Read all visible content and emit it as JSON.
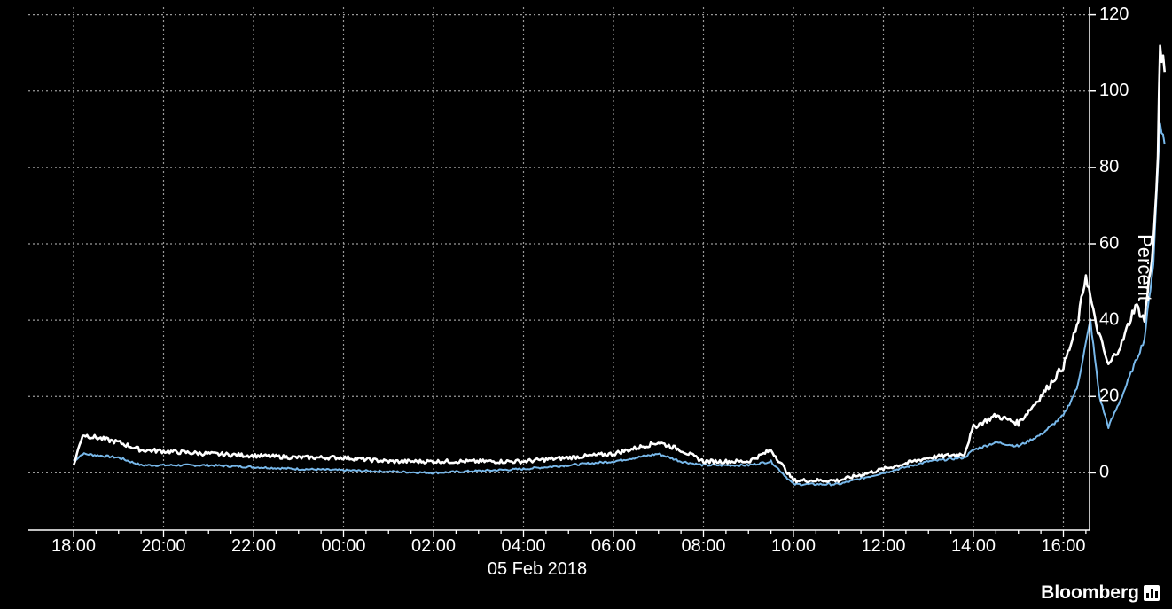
{
  "chart_data": {
    "type": "line",
    "ylabel": "Percent",
    "date_label": "05 Feb 2018",
    "brand": "Bloomberg",
    "grid": true,
    "ylim": [
      -15,
      122
    ],
    "y_ticks": [
      0,
      20,
      40,
      60,
      80,
      100,
      120
    ],
    "x_ticks": [
      "18:00",
      "20:00",
      "22:00",
      "00:00",
      "02:00",
      "04:00",
      "06:00",
      "08:00",
      "10:00",
      "12:00",
      "14:00",
      "16:00"
    ],
    "x_start": "18:00",
    "x_end": "16:15",
    "series": [
      {
        "color": "#ffffff",
        "values": [
          [
            0,
            2
          ],
          [
            0.2,
            10
          ],
          [
            1.0,
            8
          ],
          [
            1.5,
            6
          ],
          [
            3,
            5
          ],
          [
            5,
            4
          ],
          [
            6,
            4
          ],
          [
            7,
            3
          ],
          [
            8,
            3
          ],
          [
            10,
            3
          ],
          [
            12,
            5
          ],
          [
            13,
            8
          ],
          [
            13.5,
            6
          ],
          [
            14,
            3
          ],
          [
            15,
            3
          ],
          [
            15.5,
            6
          ],
          [
            16,
            -2
          ],
          [
            17,
            -2
          ],
          [
            18,
            1
          ],
          [
            19,
            4
          ],
          [
            19.8,
            5
          ],
          [
            20,
            12
          ],
          [
            20.5,
            15
          ],
          [
            21,
            13
          ],
          [
            21.5,
            20
          ],
          [
            22,
            28
          ],
          [
            22.3,
            38
          ],
          [
            22.5,
            52
          ],
          [
            22.7,
            40
          ],
          [
            23,
            28
          ],
          [
            23.3,
            34
          ],
          [
            23.6,
            44
          ],
          [
            23.8,
            40
          ],
          [
            24,
            60
          ],
          [
            24.1,
            82
          ],
          [
            24.15,
            112
          ],
          [
            24.25,
            105
          ]
        ]
      },
      {
        "color": "#78b8ea",
        "values": [
          [
            0,
            3
          ],
          [
            0.2,
            5
          ],
          [
            1.0,
            4
          ],
          [
            1.5,
            2
          ],
          [
            3,
            2
          ],
          [
            5,
            1
          ],
          [
            8,
            0
          ],
          [
            10,
            1
          ],
          [
            12,
            3
          ],
          [
            13,
            5
          ],
          [
            13.5,
            3
          ],
          [
            14,
            2
          ],
          [
            15,
            2
          ],
          [
            15.5,
            3
          ],
          [
            16,
            -3
          ],
          [
            17,
            -3
          ],
          [
            18,
            0
          ],
          [
            19,
            3
          ],
          [
            19.8,
            4
          ],
          [
            20,
            6
          ],
          [
            20.5,
            8
          ],
          [
            21,
            7
          ],
          [
            21.5,
            10
          ],
          [
            22,
            15
          ],
          [
            22.3,
            22
          ],
          [
            22.6,
            40
          ],
          [
            22.8,
            20
          ],
          [
            23,
            12
          ],
          [
            23.3,
            20
          ],
          [
            23.8,
            35
          ],
          [
            24,
            55
          ],
          [
            24.15,
            92
          ],
          [
            24.25,
            86
          ]
        ]
      }
    ]
  }
}
